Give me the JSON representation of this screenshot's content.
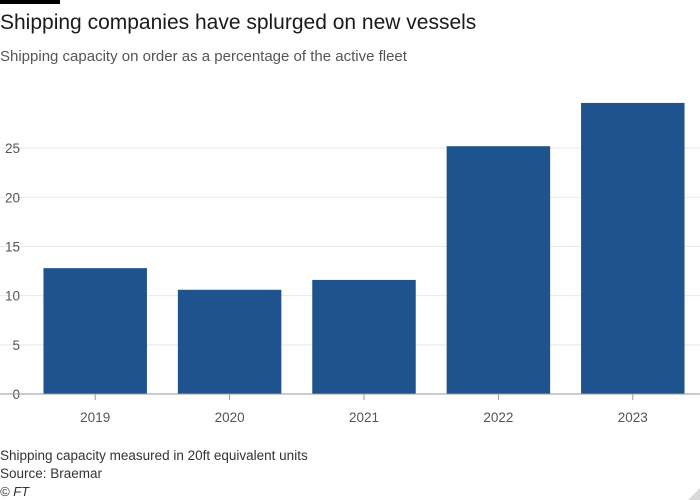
{
  "header": {
    "title": "Shipping companies have splurged on new vessels",
    "subtitle": "Shipping capacity on order as a percentage of the active fleet"
  },
  "footer": {
    "note": "Shipping capacity measured in 20ft equivalent units",
    "source": "Source: Braemar",
    "copyright": "© FT"
  },
  "chart_data": {
    "type": "bar",
    "title": "Shipping companies have splurged on new vessels",
    "subtitle": "Shipping capacity on order as a percentage of the active fleet",
    "categories": [
      "2019",
      "2020",
      "2021",
      "2022",
      "2023"
    ],
    "values": [
      12.8,
      10.6,
      11.6,
      25.2,
      29.6
    ],
    "yticks": [
      0,
      5,
      10,
      15,
      20,
      25
    ],
    "ylim": [
      0,
      30
    ],
    "grid": true,
    "bar_color": "#1f538d",
    "gridline_color": "#e8e8e8",
    "baseline_color": "#999999"
  }
}
